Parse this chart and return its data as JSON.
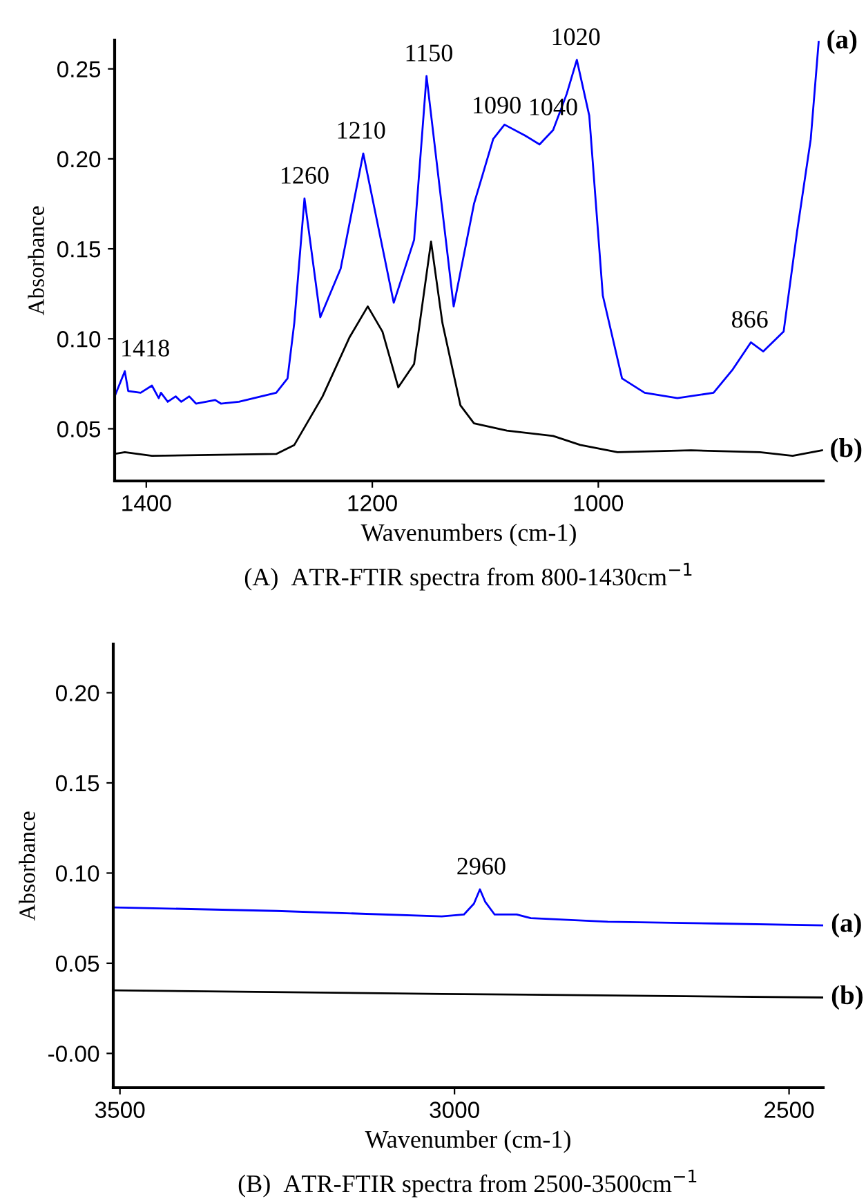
{
  "chart_data": [
    {
      "type": "line",
      "title": "(A)  ATR-FTIR spectra from 800-1430cm$^{−1}$",
      "xlabel": "Wavenumbers (cm-1)",
      "ylabel": "Absorbance",
      "xlim": [
        1428,
        801
      ],
      "xticks": [
        1400,
        1200,
        1000
      ],
      "ylim": [
        0.021,
        0.266
      ],
      "yticks": [
        {
          "value": 0.05,
          "label": "0.05"
        },
        {
          "value": 0.1,
          "label": "0.10"
        },
        {
          "value": 0.15,
          "label": "0.15"
        },
        {
          "value": 0.2,
          "label": "0.20"
        },
        {
          "value": 0.25,
          "label": "0.25"
        }
      ],
      "grid": false,
      "legend": false,
      "marker": "none",
      "line_style": "solid",
      "series": [
        {
          "name": "(a)",
          "color": "#0000ff",
          "x": [
            1428,
            1419,
            1416,
            1405,
            1395,
            1389,
            1387,
            1381,
            1374,
            1369,
            1362,
            1356,
            1339,
            1334,
            1318,
            1285,
            1275,
            1269,
            1260,
            1246,
            1228,
            1208,
            1181,
            1163,
            1152,
            1128,
            1110,
            1093,
            1083,
            1065,
            1052,
            1040,
            1028,
            1019,
            1008,
            996,
            979,
            959,
            930,
            898,
            881,
            865,
            854,
            836,
            824,
            812,
            805
          ],
          "values": [
            0.068,
            0.082,
            0.071,
            0.07,
            0.074,
            0.067,
            0.07,
            0.065,
            0.068,
            0.065,
            0.068,
            0.064,
            0.066,
            0.064,
            0.065,
            0.07,
            0.078,
            0.109,
            0.178,
            0.112,
            0.139,
            0.203,
            0.12,
            0.155,
            0.246,
            0.118,
            0.175,
            0.211,
            0.219,
            0.213,
            0.208,
            0.216,
            0.236,
            0.255,
            0.224,
            0.124,
            0.078,
            0.07,
            0.067,
            0.07,
            0.083,
            0.098,
            0.093,
            0.104,
            0.16,
            0.211,
            0.265
          ]
        },
        {
          "name": "(b)",
          "color": "#000000",
          "x": [
            1428,
            1419,
            1395,
            1285,
            1269,
            1244,
            1220,
            1204,
            1191,
            1177,
            1163,
            1148,
            1138,
            1122,
            1110,
            1081,
            1040,
            1016,
            983,
            918,
            857,
            828,
            802
          ],
          "values": [
            0.036,
            0.037,
            0.035,
            0.036,
            0.041,
            0.068,
            0.101,
            0.118,
            0.104,
            0.073,
            0.086,
            0.154,
            0.109,
            0.063,
            0.053,
            0.049,
            0.046,
            0.041,
            0.037,
            0.038,
            0.037,
            0.035,
            0.038
          ]
        }
      ],
      "annotations": [
        {
          "text": "1418",
          "x": 1418,
          "y": 0.082
        },
        {
          "text": "1260",
          "x": 1260,
          "y": 0.178
        },
        {
          "text": "1210",
          "x": 1210,
          "y": 0.203
        },
        {
          "text": "1150",
          "x": 1150,
          "y": 0.246
        },
        {
          "text": "1090",
          "x": 1090,
          "y": 0.217
        },
        {
          "text": "1040",
          "x": 1040,
          "y": 0.216
        },
        {
          "text": "1020",
          "x": 1020,
          "y": 0.255
        },
        {
          "text": "866",
          "x": 866,
          "y": 0.098
        }
      ]
    },
    {
      "type": "line",
      "title": "(B)  ATR-FTIR spectra from 2500-3500cm$^{−1}$",
      "xlabel": "Wavenumber (cm-1)",
      "ylabel": "Absorbance",
      "xlim": [
        3510,
        2449
      ],
      "xticks": [
        3500,
        3000,
        2500
      ],
      "ylim": [
        -0.019,
        0.227
      ],
      "yticks": [
        {
          "value": 0,
          "label": "-0.00"
        },
        {
          "value": 0.05,
          "label": "0.05"
        },
        {
          "value": 0.1,
          "label": "0.10"
        },
        {
          "value": 0.15,
          "label": "0.15"
        },
        {
          "value": 0.2,
          "label": "0.20"
        }
      ],
      "grid": false,
      "legend": false,
      "marker": "none",
      "line_style": "solid",
      "series": [
        {
          "name": "(a)",
          "color": "#0000ff",
          "x": [
            3510,
            3266,
            3019,
            2986,
            2971,
            2962,
            2954,
            2940,
            2907,
            2886,
            2771,
            2606,
            2449
          ],
          "values": [
            0.081,
            0.079,
            0.076,
            0.077,
            0.083,
            0.091,
            0.084,
            0.077,
            0.077,
            0.075,
            0.073,
            0.072,
            0.071
          ]
        },
        {
          "name": "(b)",
          "color": "#000000",
          "x": [
            3510,
            3019,
            2449
          ],
          "values": [
            0.035,
            0.033,
            0.031
          ]
        }
      ],
      "annotations": [
        {
          "text": "2960",
          "x": 2960,
          "y": 0.091
        }
      ]
    }
  ]
}
